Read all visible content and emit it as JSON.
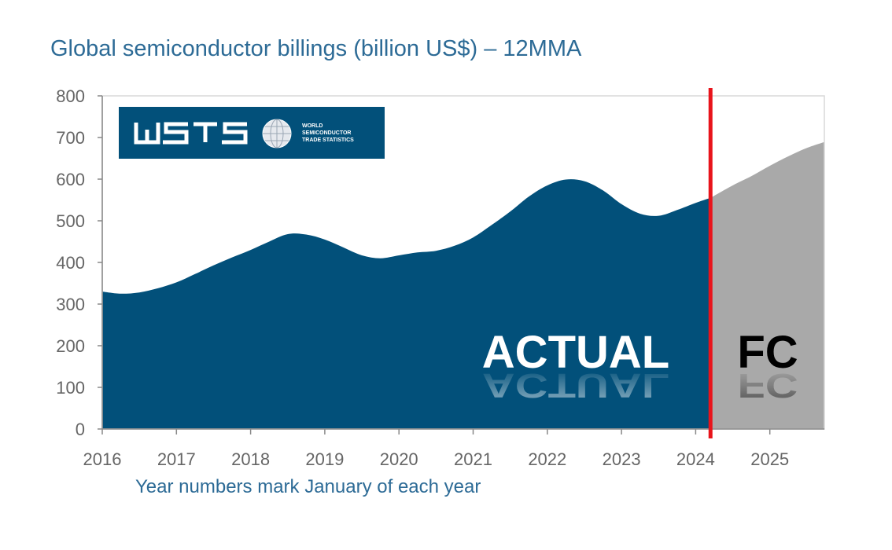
{
  "chart_data": {
    "type": "area",
    "title": "Global semiconductor billings (billion US$) – 12MMA",
    "subtitle_note": "Year numbers mark January of each year",
    "xlabel": "",
    "ylabel": "",
    "xlim": [
      2016,
      2025.75
    ],
    "ylim": [
      0,
      800
    ],
    "y_ticks": [
      0,
      100,
      200,
      300,
      400,
      500,
      600,
      700,
      800
    ],
    "x_ticks": [
      2016,
      2017,
      2018,
      2019,
      2020,
      2021,
      2022,
      2023,
      2024,
      2025
    ],
    "forecast_start": 2024.2,
    "grid": false,
    "series": [
      {
        "name": "Actual",
        "color": "#02507a",
        "x": [
          2016.0,
          2016.25,
          2016.5,
          2016.75,
          2017.0,
          2017.25,
          2017.5,
          2017.75,
          2018.0,
          2018.25,
          2018.5,
          2018.75,
          2019.0,
          2019.25,
          2019.5,
          2019.75,
          2020.0,
          2020.25,
          2020.5,
          2020.75,
          2021.0,
          2021.25,
          2021.5,
          2021.75,
          2022.0,
          2022.25,
          2022.5,
          2022.75,
          2023.0,
          2023.25,
          2023.5,
          2023.75,
          2024.0,
          2024.2
        ],
        "y": [
          330,
          325,
          328,
          338,
          352,
          372,
          393,
          412,
          430,
          450,
          468,
          467,
          455,
          436,
          417,
          410,
          417,
          424,
          428,
          440,
          460,
          490,
          522,
          558,
          585,
          599,
          595,
          573,
          540,
          517,
          512,
          526,
          543,
          555
        ]
      },
      {
        "name": "FC",
        "color": "#a9a9a9",
        "x": [
          2024.2,
          2024.5,
          2024.75,
          2025.0,
          2025.25,
          2025.5,
          2025.75
        ],
        "y": [
          555,
          585,
          607,
          632,
          655,
          675,
          690
        ]
      }
    ],
    "annotations": [
      "ACTUAL",
      "FC"
    ]
  },
  "logo": {
    "name": "WSTS",
    "line1": "WORLD",
    "line2": "SEMICONDUCTOR",
    "line3": "TRADE STATISTICS"
  }
}
